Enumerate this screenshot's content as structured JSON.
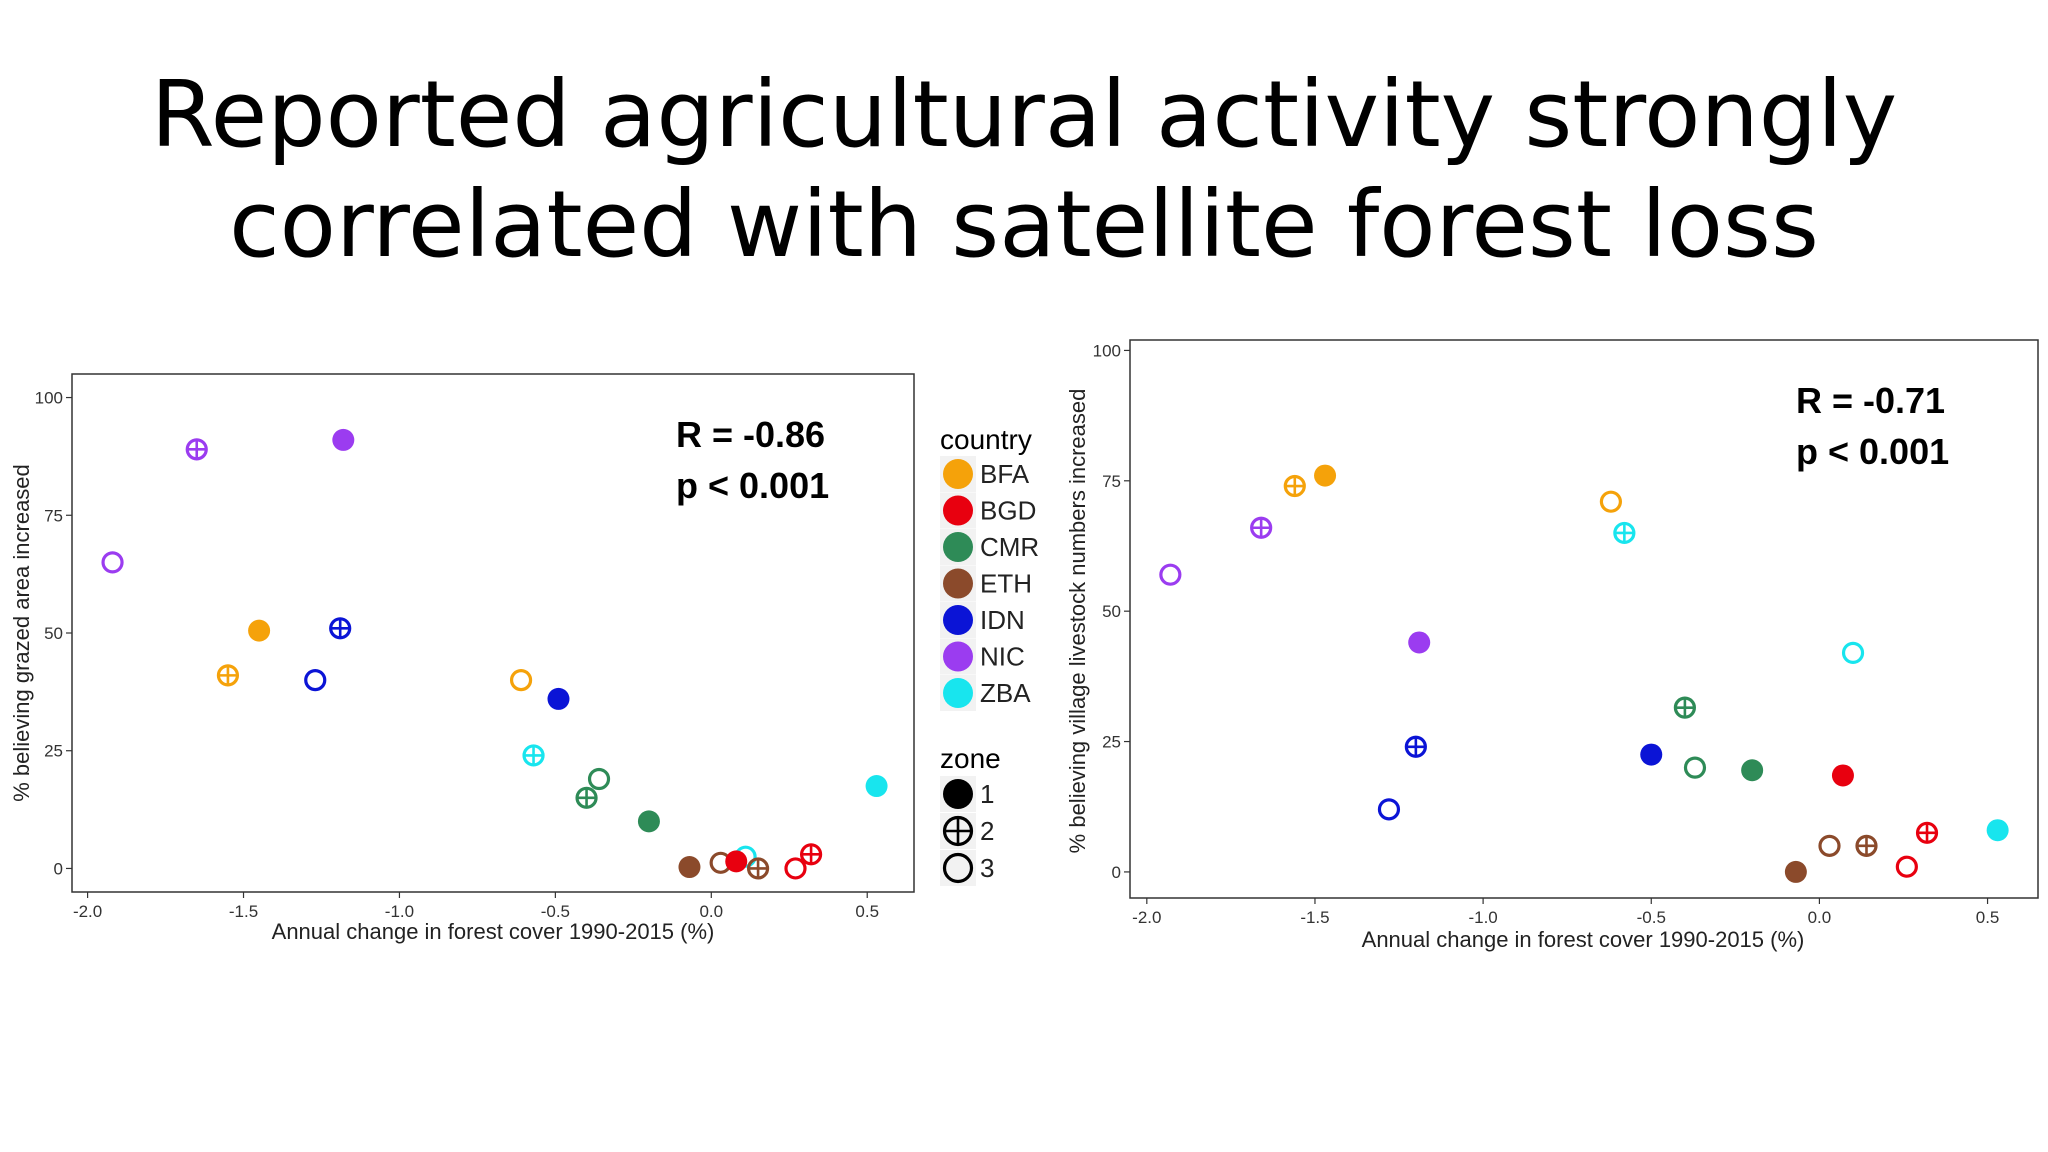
{
  "title_lines": [
    "Reported agricultural activity strongly",
    "correlated with satellite forest loss"
  ],
  "colors": {
    "BFA": "#f5a20a",
    "BGD": "#e8000f",
    "CMR": "#2e8b57",
    "ETH": "#8b4a2b",
    "IDN": "#0b14d6",
    "NIC": "#9b3cf0",
    "ZBA": "#18e5ee"
  },
  "legend": {
    "country_title": "country",
    "countries": [
      "BFA",
      "BGD",
      "CMR",
      "ETH",
      "IDN",
      "NIC",
      "ZBA"
    ],
    "zone_title": "zone",
    "zones": [
      "1",
      "2",
      "3"
    ]
  },
  "chart_data": [
    {
      "type": "scatter",
      "xlabel": "Annual change in forest cover 1990-2015 (%)",
      "ylabel": "% believing grazed area increased",
      "xlim": [
        -2.05,
        0.65
      ],
      "ylim": [
        -5,
        105
      ],
      "xticks": [
        "-2.0",
        "-1.5",
        "-1.0",
        "-0.5",
        "0.0",
        "0.5"
      ],
      "yticks": [
        "0",
        "25",
        "50",
        "75",
        "100"
      ],
      "stats": [
        "R = -0.86",
        "p < 0.001"
      ],
      "grid": false,
      "points": [
        {
          "country": "NIC",
          "zone": "2",
          "x": -1.65,
          "y": 89
        },
        {
          "country": "NIC",
          "zone": "1",
          "x": -1.18,
          "y": 91
        },
        {
          "country": "NIC",
          "zone": "3",
          "x": -1.92,
          "y": 65
        },
        {
          "country": "BFA",
          "zone": "1",
          "x": -1.45,
          "y": 50.5
        },
        {
          "country": "BFA",
          "zone": "2",
          "x": -1.55,
          "y": 41
        },
        {
          "country": "BFA",
          "zone": "3",
          "x": -0.61,
          "y": 40
        },
        {
          "country": "IDN",
          "zone": "2",
          "x": -1.19,
          "y": 51
        },
        {
          "country": "IDN",
          "zone": "3",
          "x": -1.27,
          "y": 40
        },
        {
          "country": "IDN",
          "zone": "1",
          "x": -0.49,
          "y": 36
        },
        {
          "country": "ZBA",
          "zone": "2",
          "x": -0.57,
          "y": 24
        },
        {
          "country": "ZBA",
          "zone": "1",
          "x": 0.53,
          "y": 17.5
        },
        {
          "country": "ZBA",
          "zone": "3",
          "x": 0.11,
          "y": 2.5
        },
        {
          "country": "CMR",
          "zone": "3",
          "x": -0.36,
          "y": 19
        },
        {
          "country": "CMR",
          "zone": "2",
          "x": -0.4,
          "y": 15
        },
        {
          "country": "CMR",
          "zone": "1",
          "x": -0.2,
          "y": 10
        },
        {
          "country": "ETH",
          "zone": "1",
          "x": -0.07,
          "y": 0.3
        },
        {
          "country": "ETH",
          "zone": "3",
          "x": 0.03,
          "y": 1.2
        },
        {
          "country": "ETH",
          "zone": "2",
          "x": 0.15,
          "y": 0
        },
        {
          "country": "BGD",
          "zone": "1",
          "x": 0.08,
          "y": 1.5
        },
        {
          "country": "BGD",
          "zone": "3",
          "x": 0.27,
          "y": 0
        },
        {
          "country": "BGD",
          "zone": "2",
          "x": 0.32,
          "y": 3
        }
      ]
    },
    {
      "type": "scatter",
      "xlabel": "Annual change in forest cover 1990-2015 (%)",
      "ylabel": "% believing village livestock numbers increased",
      "xlim": [
        -2.05,
        0.65
      ],
      "ylim": [
        -5,
        102
      ],
      "xticks": [
        "-2.0",
        "-1.5",
        "-1.0",
        "-0.5",
        "0.0",
        "0.5"
      ],
      "yticks": [
        "0",
        "25",
        "50",
        "75",
        "100"
      ],
      "stats": [
        "R = -0.71",
        "p < 0.001"
      ],
      "grid": false,
      "points": [
        {
          "country": "BFA",
          "zone": "2",
          "x": -1.56,
          "y": 74
        },
        {
          "country": "BFA",
          "zone": "1",
          "x": -1.47,
          "y": 76
        },
        {
          "country": "BFA",
          "zone": "3",
          "x": -0.62,
          "y": 71
        },
        {
          "country": "ZBA",
          "zone": "2",
          "x": -0.58,
          "y": 65
        },
        {
          "country": "ZBA",
          "zone": "3",
          "x": 0.1,
          "y": 42
        },
        {
          "country": "ZBA",
          "zone": "1",
          "x": 0.53,
          "y": 8
        },
        {
          "country": "NIC",
          "zone": "2",
          "x": -1.66,
          "y": 66
        },
        {
          "country": "NIC",
          "zone": "3",
          "x": -1.93,
          "y": 57
        },
        {
          "country": "NIC",
          "zone": "1",
          "x": -1.19,
          "y": 44
        },
        {
          "country": "CMR",
          "zone": "2",
          "x": -0.4,
          "y": 31.5
        },
        {
          "country": "CMR",
          "zone": "3",
          "x": -0.37,
          "y": 20
        },
        {
          "country": "CMR",
          "zone": "1",
          "x": -0.2,
          "y": 19.5
        },
        {
          "country": "IDN",
          "zone": "2",
          "x": -1.2,
          "y": 24
        },
        {
          "country": "IDN",
          "zone": "1",
          "x": -0.5,
          "y": 22.5
        },
        {
          "country": "IDN",
          "zone": "3",
          "x": -1.28,
          "y": 12
        },
        {
          "country": "BGD",
          "zone": "1",
          "x": 0.07,
          "y": 18.5
        },
        {
          "country": "BGD",
          "zone": "2",
          "x": 0.32,
          "y": 7.5
        },
        {
          "country": "BGD",
          "zone": "3",
          "x": 0.26,
          "y": 1
        },
        {
          "country": "ETH",
          "zone": "3",
          "x": 0.03,
          "y": 5
        },
        {
          "country": "ETH",
          "zone": "2",
          "x": 0.14,
          "y": 5
        },
        {
          "country": "ETH",
          "zone": "1",
          "x": -0.07,
          "y": 0
        }
      ]
    }
  ]
}
